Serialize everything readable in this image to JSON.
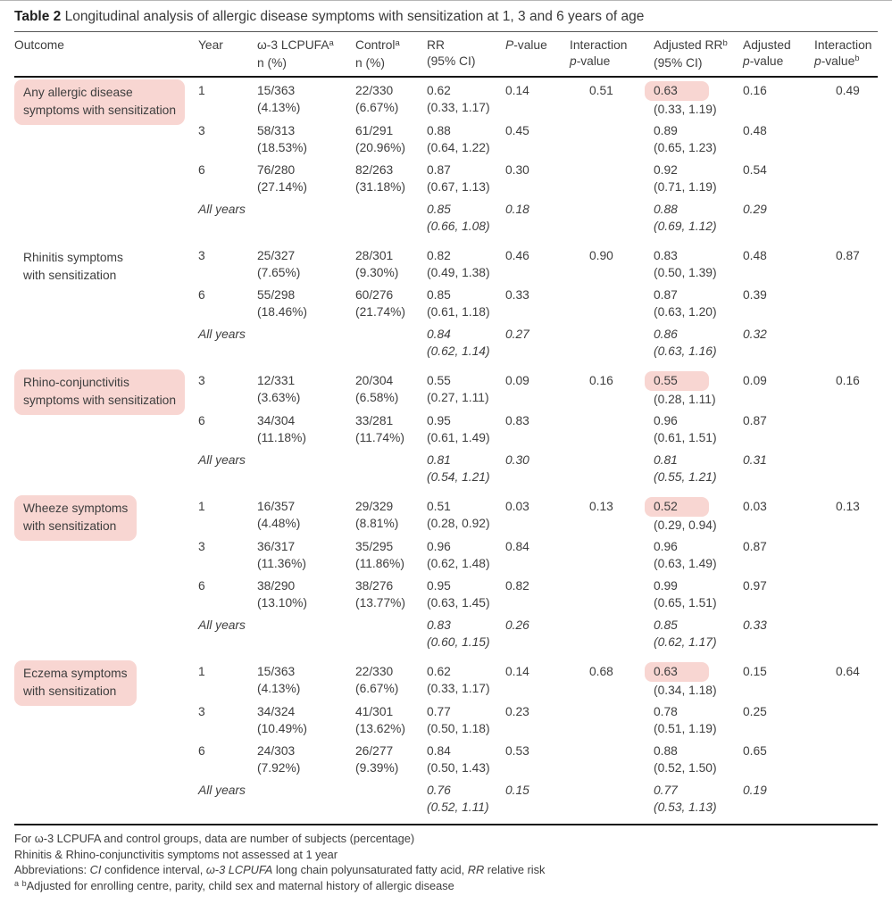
{
  "colors": {
    "highlight_pink": "#f8d6d2",
    "rule_dark": "#161616",
    "text": "#3e3e3e"
  },
  "title": {
    "bold": "Table 2",
    "rest": " Longitudinal analysis of allergic disease symptoms with sensitization at 1, 3 and 6 years of age"
  },
  "header": {
    "cols": [
      {
        "lines": [
          [
            {
              "t": "Outcome"
            }
          ]
        ]
      },
      {
        "lines": [
          [
            {
              "t": "Year"
            }
          ]
        ]
      },
      {
        "lines": [
          [
            {
              "t": "ω-3 LCPUFA"
            },
            {
              "t": "a",
              "sup": true
            }
          ],
          [
            {
              "t": "n (%)"
            }
          ]
        ]
      },
      {
        "lines": [
          [
            {
              "t": "Control"
            },
            {
              "t": "a",
              "sup": true
            }
          ],
          [
            {
              "t": "n (%)"
            }
          ]
        ]
      },
      {
        "lines": [
          [
            {
              "t": "RR"
            }
          ],
          [
            {
              "t": "(95% CI)"
            }
          ]
        ]
      },
      {
        "lines": [
          [
            {
              "t": "P",
              "italic": true
            },
            {
              "t": "-value"
            }
          ]
        ]
      },
      {
        "lines": [
          [
            {
              "t": "Interaction"
            }
          ],
          [
            {
              "t": "p",
              "italic": true
            },
            {
              "t": "-value"
            }
          ]
        ]
      },
      {
        "lines": [
          [
            {
              "t": "Adjusted RR"
            },
            {
              "t": "b",
              "sup": true
            }
          ],
          [
            {
              "t": "(95% CI)"
            }
          ]
        ]
      },
      {
        "lines": [
          [
            {
              "t": "Adjusted"
            }
          ],
          [
            {
              "t": "p",
              "italic": true
            },
            {
              "t": "-value"
            }
          ]
        ]
      },
      {
        "lines": [
          [
            {
              "t": "Interaction"
            }
          ],
          [
            {
              "t": "p",
              "italic": true
            },
            {
              "t": "-value"
            },
            {
              "t": "b",
              "sup": true
            }
          ]
        ]
      }
    ]
  },
  "groups": [
    {
      "outcome_lines": [
        "Any allergic disease",
        "symptoms with sensitization"
      ],
      "highlighted": true,
      "rows": [
        {
          "year": "1",
          "n1": "15/363",
          "p1": "(4.13%)",
          "n2": "22/330",
          "p2": "(6.67%)",
          "rr": "0.62",
          "rrci": "(0.33, 1.17)",
          "p": "0.14",
          "ip": "0.51",
          "arr": "0.63",
          "ahl": true,
          "aci": "(0.33, 1.19)",
          "ap": "0.16",
          "ipb": "0.49"
        },
        {
          "year": "3",
          "n1": "58/313",
          "p1": "(18.53%)",
          "n2": "61/291",
          "p2": "(20.96%)",
          "rr": "0.88",
          "rrci": "(0.64, 1.22)",
          "p": "0.45",
          "ip": "",
          "arr": "0.89",
          "aci": "(0.65, 1.23)",
          "ap": "0.48",
          "ipb": ""
        },
        {
          "year": "6",
          "n1": "76/280",
          "p1": "(27.14%)",
          "n2": "82/263",
          "p2": "(31.18%)",
          "rr": "0.87",
          "rrci": "(0.67, 1.13)",
          "p": "0.30",
          "ip": "",
          "arr": "0.92",
          "aci": "(0.71, 1.19)",
          "ap": "0.54",
          "ipb": ""
        },
        {
          "year": "All years",
          "italic": true,
          "n1": "",
          "p1": "",
          "n2": "",
          "p2": "",
          "rr": "0.85",
          "rrci": "(0.66, 1.08)",
          "p": "0.18",
          "ip": "",
          "arr": "0.88",
          "aci": "(0.69, 1.12)",
          "ap": "0.29",
          "ipb": ""
        }
      ]
    },
    {
      "outcome_lines": [
        "Rhinitis symptoms",
        "with sensitization"
      ],
      "highlighted": false,
      "rows": [
        {
          "year": "3",
          "n1": "25/327",
          "p1": "(7.65%)",
          "n2": "28/301",
          "p2": "(9.30%)",
          "rr": "0.82",
          "rrci": "(0.49, 1.38)",
          "p": "0.46",
          "ip": "0.90",
          "arr": "0.83",
          "aci": "(0.50, 1.39)",
          "ap": "0.48",
          "ipb": "0.87"
        },
        {
          "year": "6",
          "n1": "55/298",
          "p1": "(18.46%)",
          "n2": "60/276",
          "p2": "(21.74%)",
          "rr": "0.85",
          "rrci": "(0.61, 1.18)",
          "p": "0.33",
          "ip": "",
          "arr": "0.87",
          "aci": "(0.63, 1.20)",
          "ap": "0.39",
          "ipb": ""
        },
        {
          "year": "All years",
          "italic": true,
          "n1": "",
          "p1": "",
          "n2": "",
          "p2": "",
          "rr": "0.84",
          "rrci": "(0.62, 1.14)",
          "p": "0.27",
          "ip": "",
          "arr": "0.86",
          "aci": "(0.63, 1.16)",
          "ap": "0.32",
          "ipb": ""
        }
      ]
    },
    {
      "outcome_lines": [
        "Rhino-conjunctivitis",
        "symptoms with sensitization"
      ],
      "highlighted": true,
      "rows": [
        {
          "year": "3",
          "n1": "12/331",
          "p1": "(3.63%)",
          "n2": "20/304",
          "p2": "(6.58%)",
          "rr": "0.55",
          "rrci": "(0.27, 1.11)",
          "p": "0.09",
          "ip": "0.16",
          "arr": "0.55",
          "ahl": true,
          "aci": "(0.28, 1.11)",
          "ap": "0.09",
          "ipb": "0.16"
        },
        {
          "year": "6",
          "n1": "34/304",
          "p1": "(11.18%)",
          "n2": "33/281",
          "p2": "(11.74%)",
          "rr": "0.95",
          "rrci": "(0.61, 1.49)",
          "p": "0.83",
          "ip": "",
          "arr": "0.96",
          "aci": "(0.61, 1.51)",
          "ap": "0.87",
          "ipb": ""
        },
        {
          "year": "All years",
          "italic": true,
          "n1": "",
          "p1": "",
          "n2": "",
          "p2": "",
          "rr": "0.81",
          "rrci": "(0.54, 1.21)",
          "p": "0.30",
          "ip": "",
          "arr": "0.81",
          "aci": "(0.55, 1.21)",
          "ap": "0.31",
          "ipb": ""
        }
      ]
    },
    {
      "outcome_lines": [
        "Wheeze symptoms",
        "with sensitization"
      ],
      "highlighted": true,
      "rows": [
        {
          "year": "1",
          "n1": "16/357",
          "p1": "(4.48%)",
          "n2": "29/329",
          "p2": "(8.81%)",
          "rr": "0.51",
          "rrci": "(0.28, 0.92)",
          "p": "0.03",
          "ip": "0.13",
          "arr": "0.52",
          "ahl": true,
          "aci": "(0.29, 0.94)",
          "ap": "0.03",
          "ipb": "0.13"
        },
        {
          "year": "3",
          "n1": "36/317",
          "p1": "(11.36%)",
          "n2": "35/295",
          "p2": "(11.86%)",
          "rr": "0.96",
          "rrci": "(0.62, 1.48)",
          "p": "0.84",
          "ip": "",
          "arr": "0.96",
          "aci": "(0.63, 1.49)",
          "ap": "0.87",
          "ipb": ""
        },
        {
          "year": "6",
          "n1": "38/290",
          "p1": "(13.10%)",
          "n2": "38/276",
          "p2": "(13.77%)",
          "rr": "0.95",
          "rrci": "(0.63, 1.45)",
          "p": "0.82",
          "ip": "",
          "arr": "0.99",
          "aci": "(0.65, 1.51)",
          "ap": "0.97",
          "ipb": ""
        },
        {
          "year": "All years",
          "italic": true,
          "n1": "",
          "p1": "",
          "n2": "",
          "p2": "",
          "rr": "0.83",
          "rrci": "(0.60, 1.15)",
          "p": "0.26",
          "ip": "",
          "arr": "0.85",
          "aci": "(0.62, 1.17)",
          "ap": "0.33",
          "ipb": ""
        }
      ]
    },
    {
      "outcome_lines": [
        "Eczema symptoms",
        "with sensitization"
      ],
      "highlighted": true,
      "rows": [
        {
          "year": "1",
          "n1": "15/363",
          "p1": "(4.13%)",
          "n2": "22/330",
          "p2": "(6.67%)",
          "rr": "0.62",
          "rrci": "(0.33, 1.17)",
          "p": "0.14",
          "ip": "0.68",
          "arr": "0.63",
          "ahl": true,
          "aci": "(0.34, 1.18)",
          "ap": "0.15",
          "ipb": "0.64"
        },
        {
          "year": "3",
          "n1": "34/324",
          "p1": "(10.49%)",
          "n2": "41/301",
          "p2": "(13.62%)",
          "rr": "0.77",
          "rrci": "(0.50, 1.18)",
          "p": "0.23",
          "ip": "",
          "arr": "0.78",
          "aci": "(0.51, 1.19)",
          "ap": "0.25",
          "ipb": ""
        },
        {
          "year": "6",
          "n1": "24/303",
          "p1": "(7.92%)",
          "n2": "26/277",
          "p2": "(9.39%)",
          "rr": "0.84",
          "rrci": "(0.50, 1.43)",
          "p": "0.53",
          "ip": "",
          "arr": "0.88",
          "aci": "(0.52, 1.50)",
          "ap": "0.65",
          "ipb": ""
        },
        {
          "year": "All years",
          "italic": true,
          "n1": "",
          "p1": "",
          "n2": "",
          "p2": "",
          "rr": "0.76",
          "rrci": "(0.52, 1.11)",
          "p": "0.15",
          "ip": "",
          "arr": "0.77",
          "aci": "(0.53, 1.13)",
          "ap": "0.19",
          "ipb": ""
        }
      ]
    }
  ],
  "footnotes": {
    "line1": "For ω-3 LCPUFA and control groups, data are number of subjects (percentage)",
    "line2": "Rhinitis & Rhino-conjunctivitis symptoms not assessed at 1 year",
    "line3": [
      {
        "t": "Abbreviations: "
      },
      {
        "t": "CI",
        "italic": true
      },
      {
        "t": " confidence interval, "
      },
      {
        "t": "ω-3 LCPUFA",
        "italic": true
      },
      {
        "t": " long chain polyunsaturated fatty acid, "
      },
      {
        "t": "RR",
        "italic": true
      },
      {
        "t": " relative risk"
      }
    ],
    "line4": [
      {
        "t": "a",
        "sup": true
      },
      {
        "t": " "
      },
      {
        "t": "b",
        "sup": true
      },
      {
        "t": "Adjusted for enrolling centre, parity, child sex and maternal history of allergic disease"
      }
    ]
  }
}
